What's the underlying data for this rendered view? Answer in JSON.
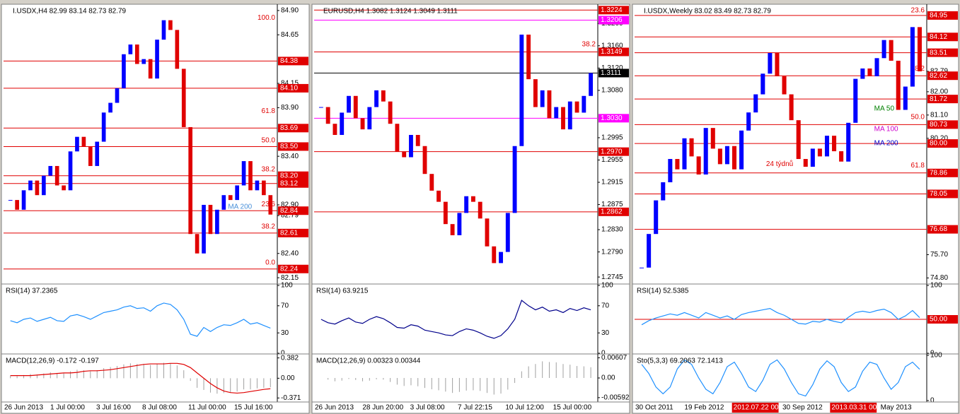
{
  "panels": [
    {
      "header": "I.USDX,H4  82.99 83.14 82.73 82.79",
      "up_color": "#0000ff",
      "down_color": "#e00000",
      "ylim": [
        82.1,
        84.95
      ],
      "yticks": [
        {
          "value": 84.9,
          "label": "84.90"
        },
        84.65,
        84.15,
        {
          "value": 83.9,
          "label": "83.90"
        },
        {
          "value": 83.4,
          "label": "83.40"
        },
        {
          "value": 82.9,
          "label": "82.90"
        },
        82.79,
        {
          "value": 82.4,
          "label": "82.40"
        },
        82.15
      ],
      "levels": [
        {
          "value": 84.38,
          "label": "84.38",
          "color": "#e00000"
        },
        {
          "value": 84.1,
          "label": "84.10",
          "color": "#e00000"
        },
        {
          "value": 83.69,
          "label": "83.69",
          "color": "#e00000"
        },
        {
          "value": 83.5,
          "label": "83.50",
          "color": "#e00000"
        },
        {
          "value": 83.2,
          "label": "83.20",
          "color": "#e00000"
        },
        {
          "value": 83.12,
          "label": "83.12",
          "color": "#e00000"
        },
        {
          "value": 82.84,
          "label": "82.84",
          "color": "#e00000"
        },
        {
          "value": 82.61,
          "label": "82.61",
          "color": "#e00000"
        },
        {
          "value": 82.24,
          "label": "82.24",
          "color": "#e00000"
        }
      ],
      "fib": [
        {
          "value": 84.78,
          "label": "100.0"
        },
        {
          "value": 83.82,
          "label": "61.8"
        },
        {
          "value": 83.52,
          "label": "50.0"
        },
        {
          "value": 83.22,
          "label": "38.2"
        },
        {
          "value": 82.86,
          "label": "23.6"
        },
        {
          "value": 82.63,
          "label": "38.2"
        },
        {
          "value": 82.26,
          "label": "0.0"
        }
      ],
      "notes": [
        {
          "text": "MA 200",
          "value": 82.88,
          "color": "#4a90d9"
        }
      ],
      "closes": [
        82.95,
        82.85,
        83.05,
        83.15,
        83.0,
        83.2,
        83.3,
        83.1,
        83.05,
        83.45,
        83.6,
        83.5,
        83.3,
        83.55,
        83.85,
        83.95,
        84.1,
        84.45,
        84.55,
        84.35,
        84.4,
        84.2,
        84.6,
        84.8,
        84.7,
        84.3,
        83.7,
        82.6,
        82.4,
        82.9,
        82.6,
        82.85,
        83.0,
        82.95,
        83.1,
        83.35,
        83.05,
        83.15,
        83.0,
        82.8
      ],
      "xlabels": [
        {
          "label": "26 Jun 2013"
        },
        {
          "label": "1 Jul 00:00"
        },
        {
          "label": "3 Jul 16:00"
        },
        {
          "label": "8 Jul 08:00"
        },
        {
          "label": "11 Jul 00:00"
        },
        {
          "label": "15 Jul 16:00"
        }
      ],
      "rsi": {
        "header": "RSI(14) 37.2365",
        "ylim": [
          0,
          100
        ],
        "yticks": [
          100,
          70,
          30,
          0
        ],
        "color": "#1e90ff",
        "values": [
          48,
          45,
          50,
          52,
          47,
          50,
          53,
          48,
          47,
          55,
          57,
          54,
          50,
          55,
          60,
          62,
          64,
          68,
          70,
          66,
          67,
          62,
          70,
          74,
          72,
          64,
          50,
          28,
          25,
          38,
          32,
          38,
          42,
          41,
          45,
          50,
          43,
          45,
          41,
          37
        ]
      },
      "lower": {
        "header": "MACD(12,26,9) -0.172 -0.197",
        "type": "histogram",
        "ylim": [
          -0.42,
          0.43
        ],
        "yticks": [
          0.382,
          {
            "value": 0,
            "label": "0.00"
          },
          -0.371
        ],
        "color": "#a0a0a0",
        "signal_color": "#e00000",
        "values": [
          0.05,
          0.04,
          0.06,
          0.08,
          0.07,
          0.09,
          0.11,
          0.1,
          0.09,
          0.13,
          0.16,
          0.15,
          0.13,
          0.15,
          0.19,
          0.21,
          0.23,
          0.26,
          0.28,
          0.27,
          0.27,
          0.25,
          0.27,
          0.29,
          0.28,
          0.24,
          0.15,
          -0.05,
          -0.18,
          -0.22,
          -0.27,
          -0.29,
          -0.28,
          -0.27,
          -0.25,
          -0.21,
          -0.21,
          -0.19,
          -0.18,
          -0.17
        ],
        "signal": [
          0.05,
          0.05,
          0.05,
          0.05,
          0.06,
          0.07,
          0.08,
          0.09,
          0.1,
          0.1,
          0.11,
          0.13,
          0.14,
          0.14,
          0.15,
          0.16,
          0.18,
          0.2,
          0.22,
          0.24,
          0.26,
          0.27,
          0.27,
          0.27,
          0.28,
          0.28,
          0.26,
          0.2,
          0.1,
          0.0,
          -0.1,
          -0.18,
          -0.24,
          -0.27,
          -0.28,
          -0.27,
          -0.25,
          -0.23,
          -0.21,
          -0.197
        ]
      }
    },
    {
      "header": "EURUSD,H4  1.3082 1.3124 1.3049 1.3111",
      "up_color": "#0000ff",
      "down_color": "#e00000",
      "ylim": [
        1.2735,
        1.3232
      ],
      "yticks": [
        {
          "value": 1.32,
          "label": "1.3200"
        },
        {
          "value": 1.316,
          "label": "1.3160"
        },
        {
          "value": 1.312,
          "label": "1.3120"
        },
        {
          "value": 1.308,
          "label": "1.3080"
        },
        1.2995,
        1.2955,
        1.2915,
        1.2875,
        {
          "value": 1.283,
          "label": "1.2830"
        },
        {
          "value": 1.279,
          "label": "1.2790"
        },
        1.2745
      ],
      "levels": [
        {
          "value": 1.3224,
          "label": "1.3224",
          "color": "#e00000"
        },
        {
          "value": 1.3206,
          "label": "1.3206",
          "color": "#ff00ff"
        },
        {
          "value": 1.3149,
          "label": "1.3149",
          "color": "#e00000"
        },
        {
          "value": 1.3111,
          "label": "1.3111",
          "color": "#000000"
        },
        {
          "value": 1.303,
          "label": "1.3030",
          "color": "#ff00ff"
        },
        {
          "value": 1.297,
          "label": "1.2970",
          "color": "#e00000"
        },
        {
          "value": 1.2862,
          "label": "1.2862",
          "color": "#e00000"
        }
      ],
      "fib": [
        {
          "value": 1.3155,
          "label": "38.2"
        }
      ],
      "notes": [],
      "closes": [
        1.305,
        1.302,
        1.3,
        1.304,
        1.307,
        1.303,
        1.301,
        1.305,
        1.308,
        1.306,
        1.302,
        1.297,
        1.296,
        1.3,
        1.298,
        1.293,
        1.29,
        1.288,
        1.284,
        1.282,
        1.286,
        1.289,
        1.288,
        1.285,
        1.28,
        1.277,
        1.279,
        1.286,
        1.298,
        1.318,
        1.31,
        1.305,
        1.308,
        1.303,
        1.305,
        1.301,
        1.306,
        1.304,
        1.307,
        1.3111
      ],
      "xlabels": [
        {
          "label": "26 Jun 2013"
        },
        {
          "label": "28 Jun 20:00"
        },
        {
          "label": "3 Jul 08:00"
        },
        {
          "label": "7 Jul 22:15"
        },
        {
          "label": "10 Jul 12:00"
        },
        {
          "label": "15 Jul 00:00"
        }
      ],
      "rsi": {
        "header": "RSI(14) 63.9215",
        "ylim": [
          0,
          100
        ],
        "yticks": [
          100,
          70,
          30,
          0
        ],
        "color": "#00008b",
        "values": [
          50,
          45,
          43,
          48,
          52,
          46,
          44,
          50,
          54,
          51,
          45,
          38,
          37,
          42,
          40,
          34,
          32,
          30,
          27,
          26,
          32,
          36,
          34,
          30,
          25,
          22,
          26,
          36,
          50,
          78,
          70,
          64,
          68,
          62,
          64,
          60,
          66,
          63,
          67,
          64
        ]
      },
      "lower": {
        "header": "MACD(12,26,9) 0.00323 0.00344",
        "type": "histogram",
        "ylim": [
          -0.0068,
          0.0068
        ],
        "yticks": [
          0.00607,
          {
            "value": 0,
            "label": "0.00"
          },
          -0.00592
        ],
        "color": "#a0a0a0",
        "values": [
          0.0,
          -0.0005,
          -0.001,
          -0.0008,
          -0.0003,
          -0.0006,
          -0.001,
          -0.0008,
          -0.0004,
          -0.0005,
          -0.0012,
          -0.002,
          -0.0024,
          -0.0022,
          -0.0025,
          -0.003,
          -0.0034,
          -0.0037,
          -0.0041,
          -0.0045,
          -0.0042,
          -0.0038,
          -0.0037,
          -0.0039,
          -0.0045,
          -0.005,
          -0.0047,
          -0.0035,
          -0.0015,
          0.002,
          0.0035,
          0.0042,
          0.005,
          0.0048,
          0.0047,
          0.0042,
          0.004,
          0.0036,
          0.0035,
          0.00323
        ]
      }
    },
    {
      "header": "I.USDX,Weekly  83.02 83.49 82.73 82.79",
      "up_color": "#0000ff",
      "down_color": "#e00000",
      "ylim": [
        74.62,
        85.33
      ],
      "yticks": [
        82.79,
        {
          "value": 82.0,
          "label": "82.00"
        },
        {
          "value": 81.1,
          "label": "81.10"
        },
        {
          "value": 80.2,
          "label": "80.20"
        },
        {
          "value": 75.7,
          "label": "75.70"
        },
        {
          "value": 74.8,
          "label": "74.80"
        }
      ],
      "levels": [
        {
          "value": 84.95,
          "label": "84.95",
          "color": "#e00000"
        },
        {
          "value": 84.12,
          "label": "84.12",
          "color": "#e00000"
        },
        {
          "value": 83.51,
          "label": "83.51",
          "color": "#e00000"
        },
        {
          "value": 82.62,
          "label": "82.62",
          "color": "#e00000"
        },
        {
          "value": 81.72,
          "label": "81.72",
          "color": "#e00000"
        },
        {
          "value": 80.73,
          "label": "80.73",
          "color": "#e00000"
        },
        {
          "value": 80.0,
          "label": "80.00",
          "color": "#e00000"
        },
        {
          "value": 78.86,
          "label": "78.86",
          "color": "#e00000"
        },
        {
          "value": 78.05,
          "label": "78.05",
          "color": "#e00000"
        },
        {
          "value": 76.68,
          "label": "76.68",
          "color": "#e00000"
        }
      ],
      "fib": [
        {
          "value": 84.98,
          "label": "23.6"
        },
        {
          "value": 82.72,
          "label": "38.2"
        },
        {
          "value": 80.85,
          "label": "50.0"
        },
        {
          "value": 78.98,
          "label": "61.8"
        }
      ],
      "notes": [
        {
          "text": "MA 50",
          "value": 81.35,
          "color": "#008000"
        },
        {
          "text": "MA 100",
          "value": 80.55,
          "color": "#cc00cc"
        },
        {
          "text": "MA 200",
          "value": 80.0,
          "color": "#0000cc"
        },
        {
          "text": "24 týdnů",
          "value": 79.2,
          "color": "#e00000"
        }
      ],
      "closes": [
        75.2,
        76.5,
        77.8,
        78.5,
        79.4,
        79.0,
        80.2,
        79.5,
        78.8,
        80.6,
        79.8,
        79.2,
        79.9,
        79.0,
        80.5,
        81.2,
        81.9,
        82.7,
        83.5,
        82.6,
        81.9,
        80.9,
        79.4,
        79.1,
        79.8,
        79.5,
        80.3,
        79.7,
        79.3,
        80.8,
        82.5,
        82.9,
        82.6,
        83.3,
        84.0,
        83.2,
        81.3,
        82.2,
        84.5,
        82.79
      ],
      "xlabels": [
        {
          "label": "30 Oct 2011"
        },
        {
          "label": "19 Feb 2012"
        },
        {
          "label": "2012.07.22 00:00",
          "highlight": true
        },
        {
          "label": "30 Sep 2012"
        },
        {
          "label": "2013.03.31 00:00",
          "highlight": true
        },
        {
          "label": "May 2013"
        }
      ],
      "rsi": {
        "header": "RSI(14) 52.5385",
        "ylim": [
          0,
          100
        ],
        "yticks": [
          100,
          0
        ],
        "levels": [
          {
            "value": 50,
            "label": "50.00",
            "color": "#e00000"
          }
        ],
        "color": "#1e90ff",
        "values": [
          42,
          48,
          52,
          55,
          58,
          56,
          60,
          56,
          52,
          60,
          56,
          52,
          55,
          50,
          57,
          60,
          62,
          64,
          66,
          60,
          56,
          50,
          44,
          43,
          47,
          46,
          50,
          47,
          45,
          53,
          60,
          62,
          60,
          63,
          65,
          60,
          50,
          55,
          63,
          52.5385
        ]
      },
      "lower": {
        "header": "Sto(5,3,3) 69.2063 72.1413",
        "type": "line",
        "ylim": [
          0,
          100
        ],
        "yticks": [
          100,
          0
        ],
        "color": "#1e90ff",
        "values": [
          80,
          60,
          30,
          15,
          30,
          70,
          90,
          80,
          50,
          25,
          15,
          40,
          75,
          85,
          60,
          30,
          20,
          45,
          80,
          90,
          70,
          40,
          15,
          10,
          35,
          70,
          88,
          75,
          40,
          20,
          30,
          65,
          85,
          80,
          50,
          25,
          40,
          75,
          85,
          69.2063
        ]
      }
    }
  ]
}
